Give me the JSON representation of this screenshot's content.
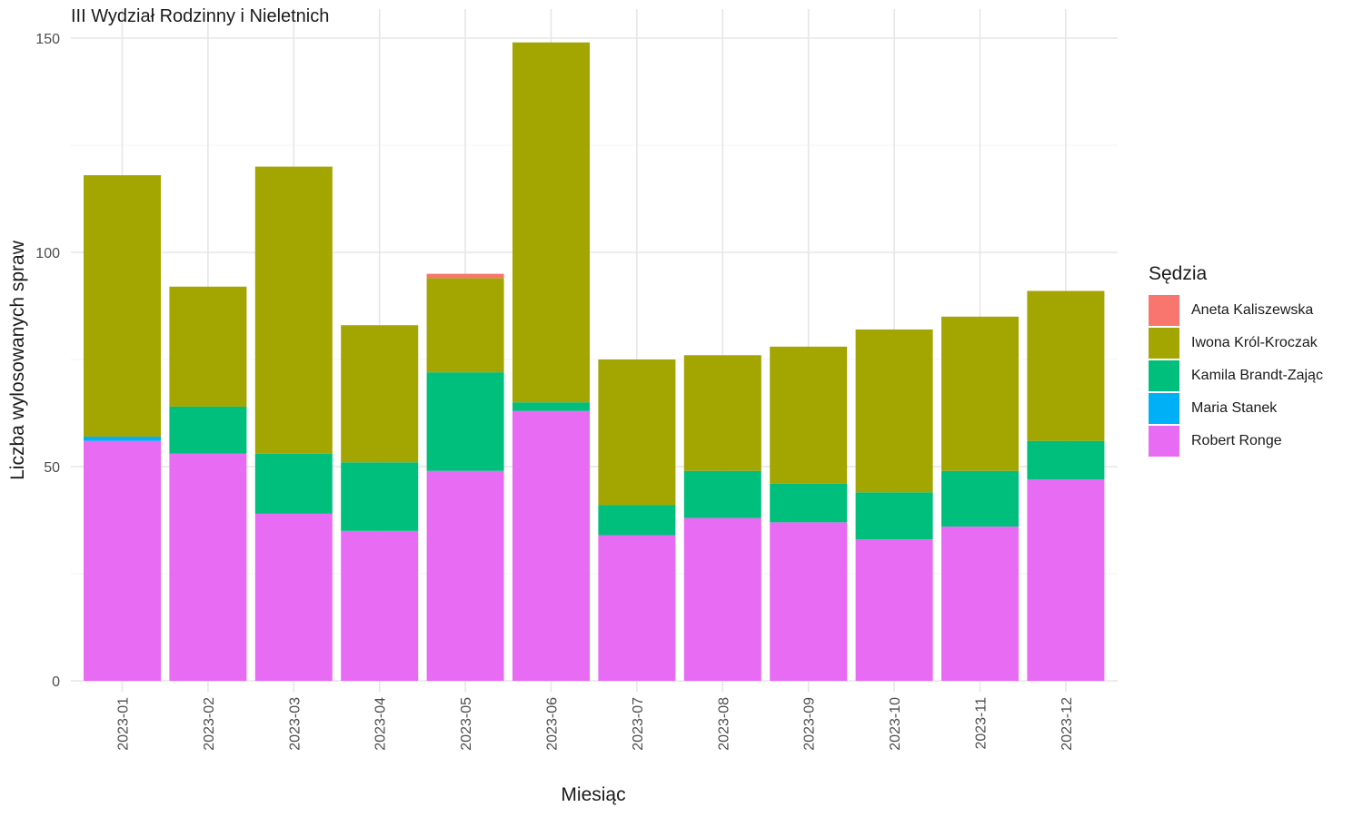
{
  "chart_data": {
    "type": "bar",
    "stacked": true,
    "title": "III Wydział Rodzinny i Nieletnich",
    "xlabel": "Miesiąc",
    "ylabel": "Liczba wylosowanych spraw",
    "ylim": [
      0,
      150
    ],
    "yticks": [
      0,
      50,
      100,
      150
    ],
    "grid": true,
    "legend_title": "Sędzia",
    "legend_position": "right",
    "categories": [
      "2023-01",
      "2023-02",
      "2023-03",
      "2023-04",
      "2023-05",
      "2023-06",
      "2023-07",
      "2023-08",
      "2023-09",
      "2023-10",
      "2023-11",
      "2023-12"
    ],
    "series": [
      {
        "name": "Robert Ronge",
        "color": "#E76BF3",
        "values": [
          56,
          53,
          39,
          35,
          49,
          63,
          34,
          38,
          37,
          33,
          36,
          47
        ]
      },
      {
        "name": "Maria Stanek",
        "color": "#00B0F6",
        "values": [
          1,
          0,
          0,
          0,
          0,
          0,
          0,
          0,
          0,
          0,
          0,
          0
        ]
      },
      {
        "name": "Kamila Brandt-Zając",
        "color": "#00BF7D",
        "values": [
          0,
          11,
          14,
          16,
          23,
          2,
          7,
          11,
          9,
          11,
          13,
          9
        ]
      },
      {
        "name": "Iwona Król-Kroczak",
        "color": "#A3A500",
        "values": [
          61,
          28,
          67,
          32,
          22,
          84,
          34,
          27,
          32,
          38,
          36,
          35
        ]
      },
      {
        "name": "Aneta Kaliszewska",
        "color": "#F8766D",
        "values": [
          0,
          0,
          0,
          0,
          1,
          0,
          0,
          0,
          0,
          0,
          0,
          0
        ]
      }
    ],
    "legend_order": [
      "Aneta Kaliszewska",
      "Iwona Król-Kroczak",
      "Kamila Brandt-Zając",
      "Maria Stanek",
      "Robert Ronge"
    ]
  }
}
